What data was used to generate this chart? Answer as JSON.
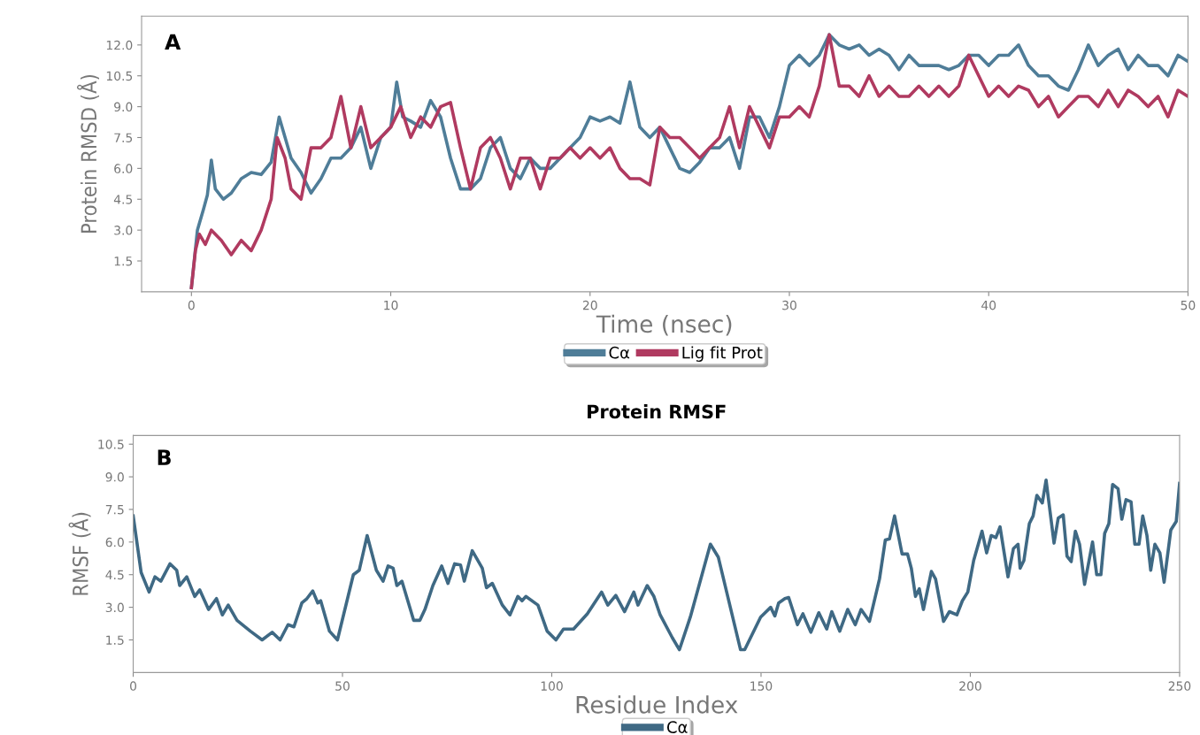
{
  "chart_data": [
    {
      "type": "line",
      "xlabel": "Time (nsec)",
      "ylabel": "Protein RMSD (Å)",
      "annotations": [
        "A"
      ],
      "xlim": [
        -2.5,
        50
      ],
      "xticks": [
        0,
        10,
        20,
        30,
        40,
        50
      ],
      "ylim": [
        0,
        13.4
      ],
      "yticks": [
        {
          "value": 1.5,
          "label": "1.5"
        },
        {
          "value": 3.0,
          "label": "3.0"
        },
        {
          "value": 4.5,
          "label": "4.5"
        },
        {
          "value": 6.0,
          "label": "6.0"
        },
        {
          "value": 7.5,
          "label": "7.5"
        },
        {
          "value": 9.0,
          "label": "9.0"
        },
        {
          "value": 10.5,
          "label": "10.5"
        },
        {
          "value": 12.0,
          "label": "12.0"
        }
      ],
      "grid": false,
      "legend": "bottom",
      "line_style": "solid",
      "marker": "none",
      "series": [
        {
          "name": "Cα",
          "color": "#4f7d98",
          "x": [
            0,
            0.3,
            0.6,
            0.8,
            1.0,
            1.2,
            1.6,
            2,
            2.5,
            3,
            3.5,
            4,
            4.4,
            5,
            5.5,
            6,
            6.5,
            7,
            7.5,
            8,
            8.5,
            9,
            9.5,
            10,
            10.3,
            10.6,
            11,
            11.5,
            12,
            12.5,
            13,
            13.5,
            14,
            14.5,
            15,
            15.5,
            16,
            16.5,
            17,
            17.5,
            18,
            18.5,
            19,
            19.5,
            20,
            20.5,
            21,
            21.5,
            22,
            22.5,
            23,
            23.5,
            24,
            24.5,
            25,
            25.5,
            26,
            26.5,
            27,
            27.5,
            28,
            28.5,
            29,
            29.5,
            30,
            30.5,
            31,
            31.5,
            32,
            32.5,
            33,
            33.5,
            34,
            34.5,
            35,
            35.5,
            36,
            36.5,
            37,
            37.5,
            38,
            38.5,
            39,
            39.5,
            40,
            40.5,
            41,
            41.5,
            42,
            42.5,
            43,
            43.5,
            44,
            44.5,
            45,
            45.5,
            46,
            46.5,
            47,
            47.5,
            48,
            48.5,
            49,
            49.5,
            50
          ],
          "values": [
            0.2,
            3.0,
            4.0,
            4.7,
            6.4,
            5.0,
            4.5,
            4.8,
            5.5,
            5.8,
            5.7,
            6.3,
            8.5,
            6.5,
            5.8,
            4.8,
            5.5,
            6.5,
            6.5,
            7.0,
            8.0,
            6.0,
            7.5,
            8.0,
            10.2,
            8.5,
            8.3,
            8.0,
            9.3,
            8.5,
            6.5,
            5.0,
            5.0,
            5.5,
            7.0,
            7.5,
            6.0,
            5.5,
            6.5,
            6.0,
            6.0,
            6.5,
            7.0,
            7.5,
            8.5,
            8.3,
            8.5,
            8.2,
            10.2,
            8.0,
            7.5,
            8.0,
            7.0,
            6.0,
            5.8,
            6.3,
            7.0,
            7.0,
            7.5,
            6.0,
            8.5,
            8.5,
            7.5,
            9.0,
            11.0,
            11.5,
            11.0,
            11.5,
            12.5,
            12.0,
            11.8,
            12.0,
            11.5,
            11.8,
            11.5,
            10.8,
            11.5,
            11.0,
            11.0,
            11.0,
            10.8,
            11.0,
            11.5,
            11.5,
            11.0,
            11.5,
            11.5,
            12.0,
            11.0,
            10.5,
            10.5,
            10.0,
            9.8,
            10.8,
            12.0,
            11.0,
            11.5,
            11.8,
            10.8,
            11.5,
            11.0,
            11.0,
            10.5,
            11.5,
            11.2
          ]
        },
        {
          "name": "Lig fit Prot",
          "color": "#b03a60",
          "x": [
            0,
            0.2,
            0.4,
            0.7,
            1,
            1.5,
            2,
            2.5,
            3,
            3.5,
            4,
            4.3,
            4.7,
            5,
            5.5,
            6,
            6.5,
            7,
            7.5,
            8,
            8.5,
            9,
            9.5,
            10,
            10.5,
            11,
            11.5,
            12,
            12.5,
            13,
            13.5,
            14,
            14.5,
            15,
            15.5,
            16,
            16.5,
            17,
            17.5,
            18,
            18.5,
            19,
            19.5,
            20,
            20.5,
            21,
            21.5,
            22,
            22.5,
            23,
            23.5,
            24,
            24.5,
            25,
            25.5,
            26,
            26.5,
            27,
            27.5,
            28,
            28.5,
            29,
            29.5,
            30,
            30.5,
            31,
            31.5,
            32,
            32.5,
            33,
            33.5,
            34,
            34.5,
            35,
            35.5,
            36,
            36.5,
            37,
            37.5,
            38,
            38.5,
            39,
            39.5,
            40,
            40.5,
            41,
            41.5,
            42,
            42.5,
            43,
            43.5,
            44,
            44.5,
            45,
            45.5,
            46,
            46.5,
            47,
            47.5,
            48,
            48.5,
            49,
            49.5,
            50
          ],
          "values": [
            0.2,
            2.0,
            2.8,
            2.3,
            3.0,
            2.5,
            1.8,
            2.5,
            2.0,
            3.0,
            4.5,
            7.5,
            6.5,
            5.0,
            4.5,
            7.0,
            7.0,
            7.5,
            9.5,
            7.0,
            9.0,
            7.0,
            7.5,
            8.0,
            9.0,
            7.5,
            8.5,
            8.0,
            9.0,
            9.2,
            7.0,
            5.0,
            7.0,
            7.5,
            6.5,
            5.0,
            6.5,
            6.5,
            5.0,
            6.5,
            6.5,
            7.0,
            6.5,
            7.0,
            6.5,
            7.0,
            6.0,
            5.5,
            5.5,
            5.2,
            8.0,
            7.5,
            7.5,
            7.0,
            6.5,
            7.0,
            7.5,
            9.0,
            7.0,
            9.0,
            8.0,
            7.0,
            8.5,
            8.5,
            9.0,
            8.5,
            10.0,
            12.5,
            10.0,
            10.0,
            9.5,
            10.5,
            9.5,
            10.0,
            9.5,
            9.5,
            10.0,
            9.5,
            10.0,
            9.5,
            10.0,
            11.5,
            10.5,
            9.5,
            10.0,
            9.5,
            10.0,
            9.8,
            9.0,
            9.5,
            8.5,
            9.0,
            9.5,
            9.5,
            9.0,
            9.8,
            9.0,
            9.8,
            9.5,
            9.0,
            9.5,
            8.5,
            9.8,
            9.5
          ]
        }
      ]
    },
    {
      "type": "line",
      "title": "Protein RMSF",
      "xlabel": "Residue Index",
      "ylabel": "RMSF (Å)",
      "annotations": [
        "B"
      ],
      "xlim": [
        0,
        250
      ],
      "xticks": [
        0,
        50,
        100,
        150,
        200,
        250
      ],
      "ylim": [
        0,
        10.9
      ],
      "yticks": [
        {
          "value": 1.5,
          "label": "1.5"
        },
        {
          "value": 3.0,
          "label": "3.0"
        },
        {
          "value": 4.5,
          "label": "4.5"
        },
        {
          "value": 6.0,
          "label": "6.0"
        },
        {
          "value": 7.5,
          "label": "7.5"
        },
        {
          "value": 9.0,
          "label": "9.0"
        },
        {
          "value": 10.5,
          "label": "10.5"
        }
      ],
      "grid": false,
      "legend": "bottom",
      "line_style": "solid",
      "marker": "none",
      "series": [
        {
          "name": "Cα",
          "color": "#3f6984",
          "x": [
            0,
            1.9,
            3.8,
            5.2,
            6.6,
            8.8,
            10.4,
            11.1,
            12.8,
            14.7,
            15.9,
            18,
            19.9,
            21.3,
            22.7,
            24.8,
            28,
            30.8,
            33.2,
            35.1,
            37,
            38.4,
            40.3,
            41.5,
            42.9,
            44.1,
            44.8,
            46.9,
            48.8,
            52.6,
            54,
            55.9,
            58.1,
            59.7,
            60.9,
            62.1,
            63,
            64.2,
            67,
            68.5,
            69.7,
            71.6,
            73.7,
            75.2,
            76.8,
            78.2,
            79.1,
            81,
            83.4,
            84.4,
            85.8,
            88.2,
            90,
            91.9,
            92.9,
            93.8,
            96.7,
            98.9,
            101,
            102.8,
            105.2,
            108.5,
            111.9,
            113.4,
            115.3,
            117.4,
            119.6,
            120.6,
            122.8,
            124.4,
            125.9,
            128.8,
            130.5,
            133.1,
            137.9,
            139.8,
            145.1,
            146.1,
            149.9,
            152.3,
            153.3,
            154.2,
            155.7,
            156.6,
            158.7,
            160,
            161.9,
            163.8,
            165.7,
            166.9,
            168.8,
            170.7,
            172.5,
            173.9,
            175.9,
            178.3,
            179.7,
            180.7,
            181.9,
            183.7,
            185,
            185.9,
            186.9,
            187.8,
            188.8,
            190.7,
            191.7,
            193.6,
            195,
            196.8,
            198.1,
            199.4,
            200.8,
            202.8,
            203.9,
            205,
            206.1,
            207.1,
            209,
            210.3,
            211.4,
            211.9,
            212.8,
            214.1,
            215,
            215.9,
            217.2,
            218.1,
            220,
            221,
            222.2,
            223.1,
            224.1,
            225.1,
            226.1,
            227.3,
            229.2,
            230.2,
            231.2,
            232.1,
            233.1,
            234,
            235.3,
            236.2,
            237.2,
            238.4,
            239.3,
            240.3,
            241.2,
            242.2,
            243.1,
            244.1,
            245.3,
            246.3,
            247.9,
            249.2,
            250
          ],
          "values": [
            7.2,
            4.6,
            3.7,
            4.4,
            4.2,
            5.0,
            4.7,
            4.0,
            4.4,
            3.5,
            3.8,
            2.9,
            3.4,
            2.65,
            3.1,
            2.4,
            1.9,
            1.5,
            1.85,
            1.5,
            2.2,
            2.1,
            3.2,
            3.4,
            3.75,
            3.2,
            3.3,
            1.9,
            1.5,
            4.5,
            4.7,
            6.3,
            4.7,
            4.2,
            4.9,
            4.8,
            4.0,
            4.2,
            2.4,
            2.4,
            2.9,
            4.0,
            4.9,
            4.1,
            5.0,
            4.95,
            4.2,
            5.6,
            4.8,
            3.9,
            4.1,
            3.1,
            2.65,
            3.5,
            3.3,
            3.5,
            3.1,
            1.9,
            1.5,
            2.0,
            2.0,
            2.7,
            3.7,
            3.1,
            3.55,
            2.8,
            3.7,
            3.1,
            4.0,
            3.5,
            2.65,
            1.6,
            1.05,
            2.55,
            5.9,
            5.3,
            1.05,
            1.05,
            2.55,
            3.0,
            2.6,
            3.2,
            3.4,
            3.45,
            2.2,
            2.7,
            1.85,
            2.75,
            2.0,
            2.8,
            1.9,
            2.9,
            2.2,
            2.9,
            2.35,
            4.3,
            6.1,
            6.15,
            7.2,
            5.45,
            5.45,
            4.8,
            3.5,
            3.85,
            2.9,
            4.65,
            4.3,
            2.35,
            2.8,
            2.65,
            3.3,
            3.7,
            5.15,
            6.5,
            5.5,
            6.3,
            6.2,
            6.7,
            4.4,
            5.7,
            5.9,
            4.8,
            5.15,
            6.85,
            7.2,
            8.15,
            7.8,
            8.85,
            5.95,
            7.1,
            7.25,
            5.35,
            5.1,
            6.5,
            5.9,
            4.05,
            6.0,
            4.5,
            4.5,
            6.4,
            6.85,
            8.65,
            8.45,
            7.05,
            7.95,
            7.85,
            5.9,
            5.9,
            7.2,
            6.3,
            4.7,
            5.9,
            5.5,
            4.15,
            6.55,
            6.95,
            8.7
          ]
        }
      ]
    }
  ]
}
